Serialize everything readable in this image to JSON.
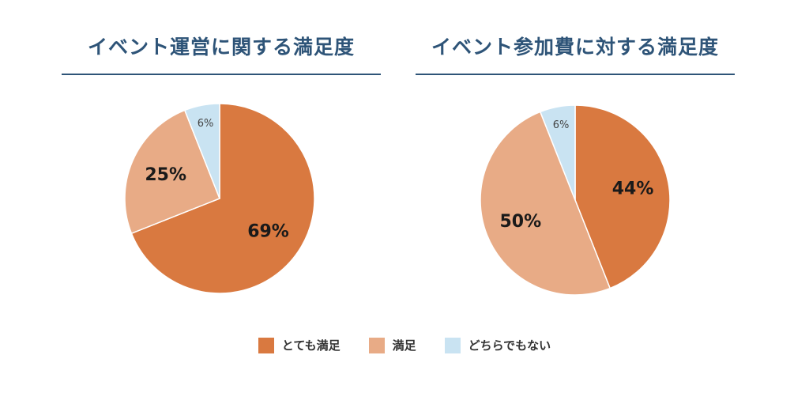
{
  "colors": {
    "title": "#2e5478",
    "very_satisfied": "#d97940",
    "satisfied": "#e8ab86",
    "neutral": "#c9e3f2"
  },
  "legend": [
    {
      "label": "とても満足",
      "color": "#d97940"
    },
    {
      "label": "満足",
      "color": "#e8ab86"
    },
    {
      "label": "どちらでもない",
      "color": "#c9e3f2"
    }
  ],
  "chart_data": [
    {
      "type": "pie",
      "title": "イベント運営に関する満足度",
      "slices": [
        {
          "label": "とても満足",
          "value": 69,
          "display": "69%",
          "color": "#d97940"
        },
        {
          "label": "満足",
          "value": 25,
          "display": "25%",
          "color": "#e8ab86"
        },
        {
          "label": "どちらでもない",
          "value": 6,
          "display": "6%",
          "color": "#c9e3f2"
        }
      ]
    },
    {
      "type": "pie",
      "title": "イベント参加費に対する満足度",
      "slices": [
        {
          "label": "とても満足",
          "value": 44,
          "display": "44%",
          "color": "#d97940"
        },
        {
          "label": "満足",
          "value": 50,
          "display": "50%",
          "color": "#e8ab86"
        },
        {
          "label": "どちらでもない",
          "value": 6,
          "display": "6%",
          "color": "#c9e3f2"
        }
      ]
    }
  ]
}
